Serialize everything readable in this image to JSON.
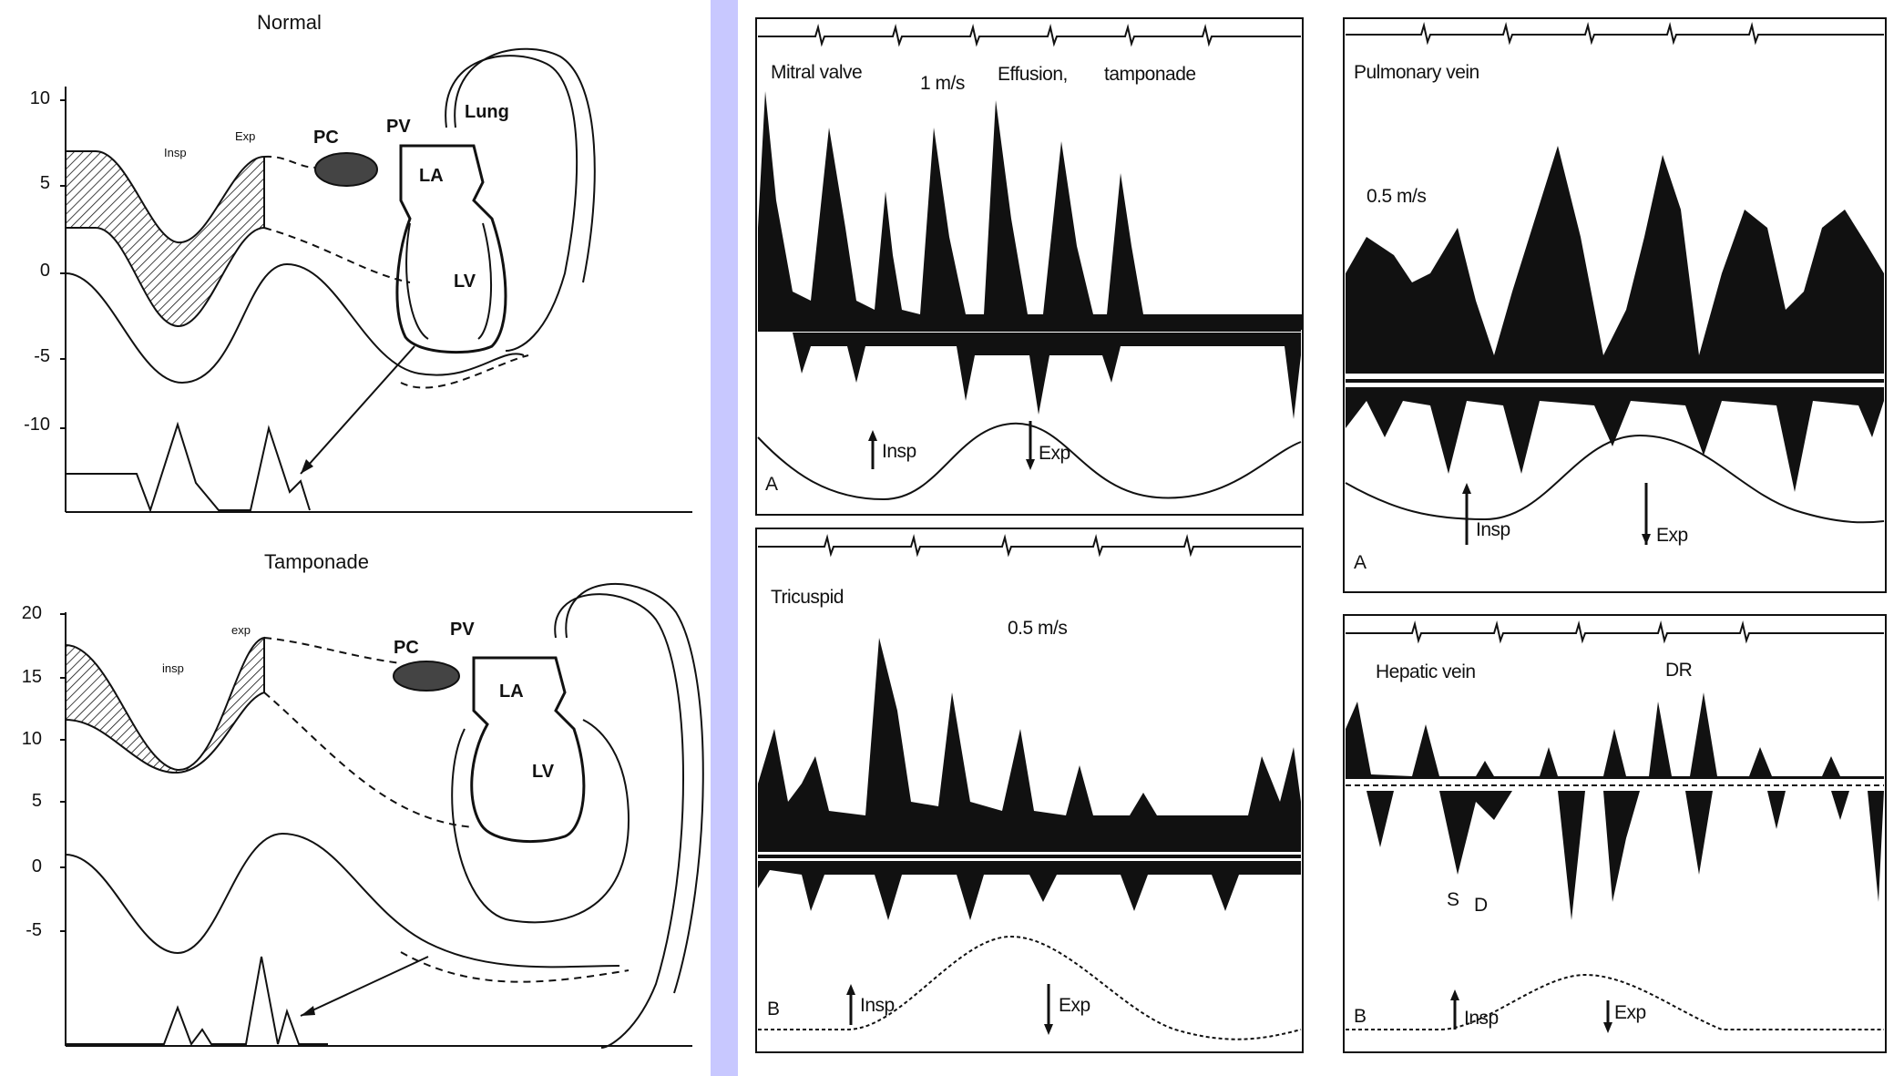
{
  "left": {
    "normal": {
      "title": "Normal",
      "yticks": [
        "10",
        "5",
        "0",
        "-5",
        "-10"
      ],
      "insp_label": "Insp",
      "exp_label": "Exp",
      "pc_label": "PC",
      "pv_label": "PV",
      "la_label": "LA",
      "lv_label": "LV",
      "lung_label": "Lung"
    },
    "tamponade": {
      "title": "Tamponade",
      "yticks": [
        "20",
        "15",
        "10",
        "5",
        "0",
        "-5"
      ],
      "insp_label": "insp",
      "exp_label": "exp",
      "pc_label": "PC",
      "pv_label": "PV",
      "la_label": "LA",
      "lv_label": "LV"
    }
  },
  "right": {
    "mitral": {
      "panel_letter": "A",
      "label_valve": "Mitral valve",
      "label_scale": "1 m/s",
      "label_effusion": "Effusion,",
      "label_tamponade": "tamponade",
      "insp": "Insp",
      "exp": "Exp"
    },
    "tricuspid": {
      "panel_letter": "B",
      "label_valve": "Tricuspid",
      "label_scale": "0.5 m/s",
      "insp": "Insp",
      "exp": "Exp"
    },
    "pulmonary": {
      "panel_letter": "A",
      "label_vein": "Pulmonary vein",
      "label_scale": "0.5 m/s",
      "insp": "Insp",
      "exp": "Exp"
    },
    "hepatic": {
      "panel_letter": "B",
      "label_vein": "Hepatic vein",
      "label_dr": "DR",
      "label_s": "S",
      "label_d": "D",
      "insp": "Insp",
      "exp": "Exp"
    }
  },
  "colors": {
    "divider": "#c8c8ff",
    "ink": "#111111"
  }
}
